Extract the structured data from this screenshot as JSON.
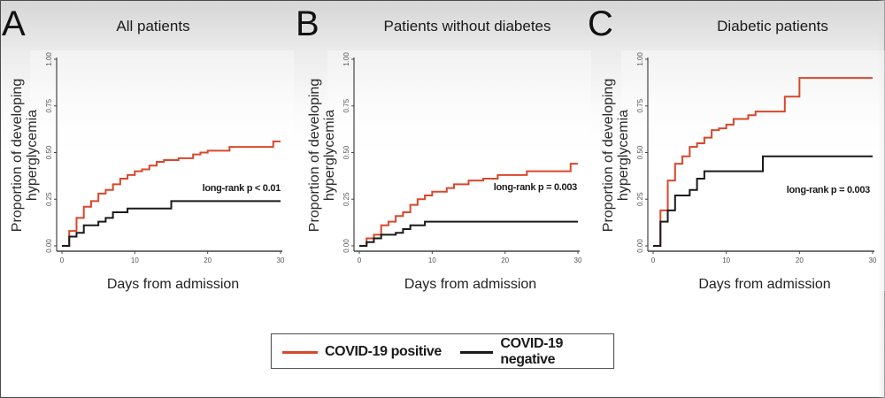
{
  "legend": {
    "items": [
      {
        "label": "COVID-19 positive",
        "color": "#d9472b"
      },
      {
        "label": "COVID-19 negative",
        "color": "#1a1a1a"
      }
    ]
  },
  "chart_data": [
    {
      "type": "line",
      "subtype": "step (Kaplan-Meier cumulative incidence)",
      "panel": "A",
      "title": "All patients",
      "xlabel": "Days from admission",
      "ylabel": "Proportion of developing hyperglycemia",
      "xlim": [
        0,
        30
      ],
      "ylim": [
        0,
        1
      ],
      "xticks": [
        "0",
        "10",
        "20",
        "30"
      ],
      "yticks": [
        "0.00",
        "0.25",
        "0.50",
        "0.75",
        "1.00"
      ],
      "annotation": "long-rank p < 0.01",
      "grid": false,
      "series": [
        {
          "name": "COVID-19 positive",
          "color": "#d9472b",
          "x": [
            0,
            1,
            2,
            3,
            4,
            5,
            6,
            7,
            8,
            9,
            10,
            11,
            12,
            13,
            14,
            16,
            18,
            19,
            20,
            23,
            29,
            30
          ],
          "y": [
            0,
            0.08,
            0.15,
            0.21,
            0.24,
            0.28,
            0.3,
            0.33,
            0.36,
            0.38,
            0.4,
            0.41,
            0.43,
            0.45,
            0.46,
            0.47,
            0.49,
            0.5,
            0.51,
            0.53,
            0.56,
            0.56
          ]
        },
        {
          "name": "COVID-19 negative",
          "color": "#1a1a1a",
          "x": [
            1,
            2,
            3,
            5,
            6,
            7,
            9,
            15,
            30
          ],
          "y": [
            0.05,
            0.07,
            0.11,
            0.13,
            0.15,
            0.18,
            0.2,
            0.24,
            0.24
          ]
        }
      ]
    },
    {
      "type": "line",
      "subtype": "step (Kaplan-Meier cumulative incidence)",
      "panel": "B",
      "title": "Patients without diabetes",
      "xlabel": "Days from admission",
      "ylabel": "Proportion of developing hyperglycemia",
      "xlim": [
        0,
        30
      ],
      "ylim": [
        0,
        1
      ],
      "xticks": [
        "0",
        "10",
        "20",
        "30"
      ],
      "yticks": [
        "0.00",
        "0.25",
        "0.50",
        "0.75",
        "1.00"
      ],
      "annotation": "long-rank p = 0.003",
      "grid": false,
      "series": [
        {
          "name": "COVID-19 positive",
          "color": "#d9472b",
          "x": [
            0,
            1,
            2,
            3,
            4,
            5,
            6,
            7,
            8,
            9,
            10,
            12,
            13,
            15,
            17,
            19,
            23,
            29,
            30
          ],
          "y": [
            0,
            0.04,
            0.06,
            0.11,
            0.13,
            0.16,
            0.18,
            0.22,
            0.25,
            0.27,
            0.29,
            0.31,
            0.33,
            0.35,
            0.36,
            0.38,
            0.4,
            0.44,
            0.44
          ]
        },
        {
          "name": "COVID-19 negative",
          "color": "#1a1a1a",
          "x": [
            1,
            2,
            3,
            5,
            6,
            7,
            9,
            30
          ],
          "y": [
            0.02,
            0.04,
            0.06,
            0.07,
            0.09,
            0.11,
            0.13,
            0.13
          ]
        }
      ]
    },
    {
      "type": "line",
      "subtype": "step (Kaplan-Meier cumulative incidence)",
      "panel": "C",
      "title": "Diabetic patients",
      "xlabel": "Days from admission",
      "ylabel": "Proportion of developing hyperglycemia",
      "xlim": [
        0,
        30
      ],
      "ylim": [
        0,
        1
      ],
      "xticks": [
        "0",
        "10",
        "20",
        "30"
      ],
      "yticks": [
        "0.00",
        "0.25",
        "0.50",
        "0.75",
        "1.00"
      ],
      "annotation": "long-rank p = 0.003",
      "grid": false,
      "series": [
        {
          "name": "COVID-19 positive",
          "color": "#d9472b",
          "x": [
            0,
            1,
            2,
            3,
            4,
            5,
            6,
            7,
            8,
            9,
            10,
            11,
            13,
            14,
            18,
            20,
            30
          ],
          "y": [
            0,
            0.19,
            0.35,
            0.44,
            0.48,
            0.53,
            0.55,
            0.58,
            0.62,
            0.63,
            0.65,
            0.68,
            0.7,
            0.72,
            0.8,
            0.9,
            0.9
          ]
        },
        {
          "name": "COVID-19 negative",
          "color": "#1a1a1a",
          "x": [
            1,
            2,
            3,
            5,
            6,
            7,
            15,
            30
          ],
          "y": [
            0.13,
            0.19,
            0.27,
            0.3,
            0.36,
            0.4,
            0.48,
            0.48
          ]
        }
      ]
    }
  ]
}
